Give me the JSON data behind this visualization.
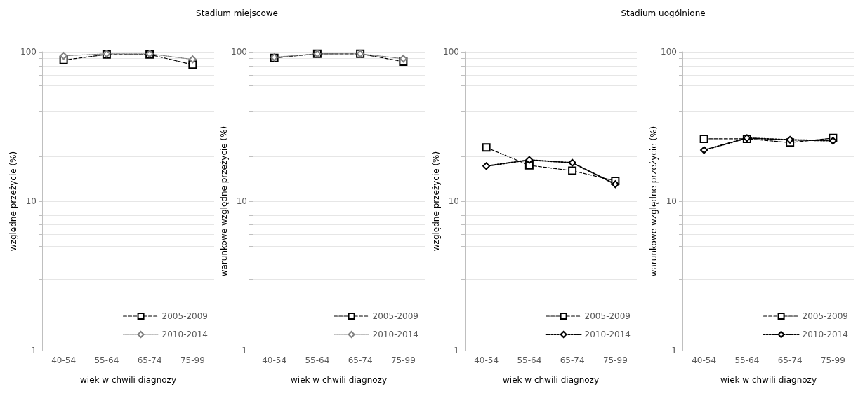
{
  "chart_data": [
    {
      "type": "line",
      "title": "Stadium miejscowe",
      "xlabel": "wiek w chwili diagnozy",
      "ylabel": "względne przeżycie (%)",
      "categories": [
        "40-54",
        "55-64",
        "65-74",
        "75-99"
      ],
      "log": "y",
      "ylim": [
        1,
        100
      ],
      "yticks": [
        1,
        {
          "value": 2,
          "label": null
        },
        {
          "value": 3,
          "label": null
        },
        {
          "value": 4,
          "label": null
        },
        {
          "value": 5,
          "label": null
        },
        {
          "value": 6,
          "label": null
        },
        {
          "value": 7,
          "label": null
        },
        {
          "value": 8,
          "label": null
        },
        {
          "value": 9,
          "label": null
        },
        10,
        {
          "value": 20,
          "label": null
        },
        {
          "value": 30,
          "label": null
        },
        {
          "value": 40,
          "label": null
        },
        {
          "value": 50,
          "label": null
        },
        {
          "value": 60,
          "label": null
        },
        {
          "value": 70,
          "label": null
        },
        {
          "value": 80,
          "label": null
        },
        {
          "value": 90,
          "label": null
        },
        100
      ],
      "grid": "y",
      "legend": "bottom right",
      "series": [
        {
          "name": "2005-2009",
          "color": "#000000",
          "marker": "square",
          "line_style": "dashed",
          "values": [
            88,
            96,
            96,
            82
          ]
        },
        {
          "name": "2010-2014",
          "color": "#808080",
          "marker": "diamond",
          "line_style": "dotted",
          "values": [
            94,
            97,
            97,
            89
          ]
        }
      ]
    },
    {
      "type": "line",
      "xlabel": "wiek w chwili diagnozy",
      "ylabel": "warunkowe względne przeżycie (%)",
      "categories": [
        "40-54",
        "55-64",
        "65-74",
        "75-99"
      ],
      "log": "y",
      "ylim": [
        1,
        100
      ],
      "yticks": [
        1,
        {
          "value": 2,
          "label": null
        },
        {
          "value": 3,
          "label": null
        },
        {
          "value": 4,
          "label": null
        },
        {
          "value": 5,
          "label": null
        },
        {
          "value": 6,
          "label": null
        },
        {
          "value": 7,
          "label": null
        },
        {
          "value": 8,
          "label": null
        },
        {
          "value": 9,
          "label": null
        },
        10,
        {
          "value": 20,
          "label": null
        },
        {
          "value": 30,
          "label": null
        },
        {
          "value": 40,
          "label": null
        },
        {
          "value": 50,
          "label": null
        },
        {
          "value": 60,
          "label": null
        },
        {
          "value": 70,
          "label": null
        },
        {
          "value": 80,
          "label": null
        },
        {
          "value": 90,
          "label": null
        },
        100
      ],
      "grid": "y",
      "legend": "bottom right",
      "series": [
        {
          "name": "2005-2009",
          "color": "#000000",
          "marker": "square",
          "line_style": "dashed",
          "values": [
            91,
            97,
            97,
            86
          ]
        },
        {
          "name": "2010-2014",
          "color": "#808080",
          "marker": "diamond",
          "line_style": "dotted",
          "values": [
            92,
            97,
            97,
            90
          ]
        }
      ]
    },
    {
      "type": "line",
      "title": "Stadium uogólnione",
      "xlabel": "wiek w chwili diagnozy",
      "ylabel": "względne przeżycie (%)",
      "categories": [
        "40-54",
        "55-64",
        "65-74",
        "75-99"
      ],
      "log": "y",
      "ylim": [
        1,
        100
      ],
      "yticks": [
        1,
        {
          "value": 2,
          "label": null
        },
        {
          "value": 3,
          "label": null
        },
        {
          "value": 4,
          "label": null
        },
        {
          "value": 5,
          "label": null
        },
        {
          "value": 6,
          "label": null
        },
        {
          "value": 7,
          "label": null
        },
        {
          "value": 8,
          "label": null
        },
        {
          "value": 9,
          "label": null
        },
        10,
        {
          "value": 20,
          "label": null
        },
        {
          "value": 30,
          "label": null
        },
        {
          "value": 40,
          "label": null
        },
        {
          "value": 50,
          "label": null
        },
        {
          "value": 60,
          "label": null
        },
        {
          "value": 70,
          "label": null
        },
        {
          "value": 80,
          "label": null
        },
        {
          "value": 90,
          "label": null
        },
        100
      ],
      "grid": "y",
      "legend": "bottom right",
      "series": [
        {
          "name": "2005-2009",
          "color": "#000000",
          "marker": "square",
          "line_style": "dashed",
          "values": [
            22.9,
            17.4,
            16.0,
            13.7
          ]
        },
        {
          "name": "2010-2014",
          "color": "#000000",
          "marker": "diamond",
          "line_style": "dotted",
          "values": [
            17.2,
            18.9,
            18.1,
            13.0
          ]
        }
      ]
    },
    {
      "type": "line",
      "xlabel": "wiek w chwili diagnozy",
      "ylabel": "warunkowe względne przeżycie (%)",
      "categories": [
        "40-54",
        "55-64",
        "65-74",
        "75-99"
      ],
      "log": "y",
      "ylim": [
        1,
        100
      ],
      "yticks": [
        1,
        {
          "value": 2,
          "label": null
        },
        {
          "value": 3,
          "label": null
        },
        {
          "value": 4,
          "label": null
        },
        {
          "value": 5,
          "label": null
        },
        {
          "value": 6,
          "label": null
        },
        {
          "value": 7,
          "label": null
        },
        {
          "value": 8,
          "label": null
        },
        {
          "value": 9,
          "label": null
        },
        10,
        {
          "value": 20,
          "label": null
        },
        {
          "value": 30,
          "label": null
        },
        {
          "value": 40,
          "label": null
        },
        {
          "value": 50,
          "label": null
        },
        {
          "value": 60,
          "label": null
        },
        {
          "value": 70,
          "label": null
        },
        {
          "value": 80,
          "label": null
        },
        {
          "value": 90,
          "label": null
        },
        100
      ],
      "grid": "y",
      "legend": "bottom right",
      "series": [
        {
          "name": "2005-2009",
          "color": "#000000",
          "marker": "square",
          "line_style": "dashed",
          "values": [
            26.2,
            26.2,
            24.7,
            26.5
          ]
        },
        {
          "name": "2010-2014",
          "color": "#000000",
          "marker": "diamond",
          "line_style": "dotted",
          "values": [
            22.0,
            26.5,
            25.8,
            25.4
          ]
        }
      ]
    }
  ]
}
